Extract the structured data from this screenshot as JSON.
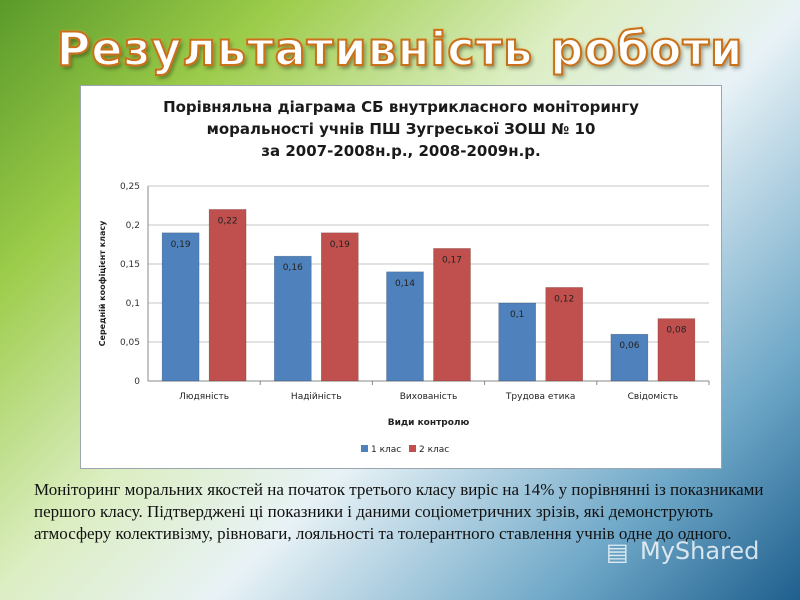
{
  "slide": {
    "title": "Результативність роботи",
    "description": "Моніторинг моральних якостей на початок третього класу виріс на 14% у порівнянні із показниками першого класу. Підтверджені ці показники і даними соціометричних зрізів, які демонструють  атмосферу колективізму, рівноваги, лояльності та толерантного ставлення учнів одне до одного.",
    "watermark": "MyShared"
  },
  "chart_data": {
    "type": "bar",
    "title_lines": [
      "Порівняльна діаграма СБ внутрикласного моніторингу",
      "моральності учнів ПШ Зугреської ЗОШ № 10",
      "за 2007-2008н.р.,  2008-2009н.р."
    ],
    "xlabel": "Види контролю",
    "ylabel": "Середній коофіцієнт  класу",
    "categories": [
      "Людяність",
      "Надійність",
      "Вихованість",
      "Трудова етика",
      "Свідомість"
    ],
    "series": [
      {
        "name": "1 клас",
        "color": "#4f81bd",
        "values": [
          0.19,
          0.16,
          0.14,
          0.1,
          0.06
        ],
        "labels": [
          "0,19",
          "0,16",
          "0,14",
          "0,1",
          "0,06"
        ]
      },
      {
        "name": "2 клас",
        "color": "#c0504d",
        "values": [
          0.22,
          0.19,
          0.17,
          0.12,
          0.08
        ],
        "labels": [
          "0,22",
          "0,19",
          "0,17",
          "0,12",
          "0,08"
        ]
      }
    ],
    "ylim": [
      0,
      0.25
    ],
    "yticks": [
      0,
      0.05,
      0.1,
      0.15,
      0.2,
      0.25
    ],
    "ytick_labels": [
      "0",
      "0,05",
      "0,1",
      "0,15",
      "0,2",
      "0,25"
    ],
    "grid": true,
    "legend": "bottom"
  }
}
